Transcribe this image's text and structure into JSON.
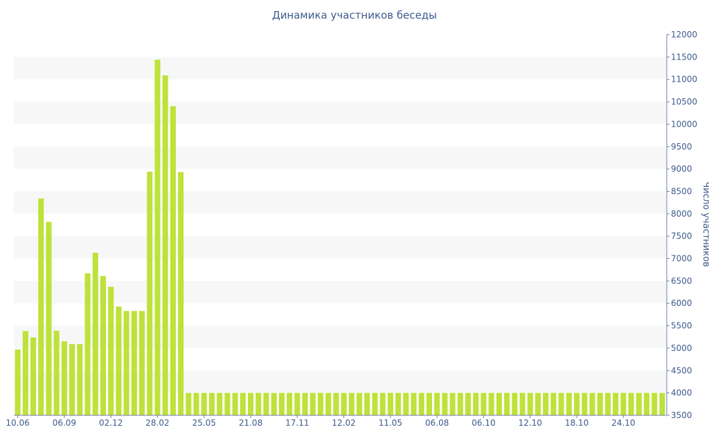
{
  "chart_data": {
    "type": "bar",
    "title": "Динамика участников беседы",
    "xlabel": "",
    "ylabel": "Число участников",
    "ylim": [
      3500,
      12000
    ],
    "yticks": [
      3500,
      4000,
      4500,
      5000,
      5500,
      6000,
      6500,
      7000,
      7500,
      8000,
      8500,
      9000,
      9500,
      10000,
      10500,
      11000,
      11500,
      12000
    ],
    "xtick_labels": [
      {
        "label": "10.06",
        "index": 0
      },
      {
        "label": "06.09",
        "index": 6
      },
      {
        "label": "02.12",
        "index": 12
      },
      {
        "label": "28.02",
        "index": 18
      },
      {
        "label": "25.05",
        "index": 24
      },
      {
        "label": "21.08",
        "index": 30
      },
      {
        "label": "17.11",
        "index": 36
      },
      {
        "label": "12.02",
        "index": 42
      },
      {
        "label": "11.05",
        "index": 48
      },
      {
        "label": "06.08",
        "index": 54
      },
      {
        "label": "06.10",
        "index": 60
      },
      {
        "label": "12.10",
        "index": 66
      },
      {
        "label": "18.10",
        "index": 72
      },
      {
        "label": "24.10",
        "index": 78
      }
    ],
    "grid": "alternating horizontal bands",
    "bar_color": "#bde23a",
    "values": [
      4970,
      5380,
      5240,
      8340,
      7820,
      5390,
      5150,
      5090,
      5090,
      6670,
      7130,
      6610,
      6370,
      5930,
      5830,
      5830,
      5830,
      8940,
      11440,
      11090,
      10400,
      8930,
      4000,
      4000,
      4000,
      4000,
      4000,
      4000,
      4000,
      4000,
      4000,
      4000,
      4000,
      4000,
      4000,
      4000,
      4000,
      4000,
      4000,
      4000,
      4000,
      4000,
      4000,
      4000,
      4000,
      4000,
      4000,
      4000,
      4000,
      4000,
      4000,
      4000,
      4000,
      4000,
      4000,
      4000,
      4000,
      4000,
      4000,
      4000,
      4000,
      4000,
      4000,
      4000,
      4000,
      4000,
      4000,
      4000,
      4000,
      4000,
      4000,
      4000,
      4000,
      4000,
      4000,
      4000,
      4000,
      4000,
      4000,
      4000,
      4000,
      4000,
      4000,
      4000
    ]
  }
}
